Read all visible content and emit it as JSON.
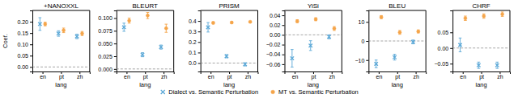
{
  "chart_data": [
    {
      "type": "dot",
      "title": "+NANOXXL",
      "xlabel": "lang",
      "ylabel": "Coef.",
      "categories": [
        "en",
        "pt",
        "zh"
      ],
      "ylim": [
        -0.02,
        0.25
      ],
      "yticks": [
        {
          "value": 0.0,
          "label": "0.00"
        },
        {
          "value": 0.05,
          "label": "0.05"
        },
        {
          "value": 0.1,
          "label": "0.10"
        },
        {
          "value": 0.15,
          "label": "0.15"
        },
        {
          "value": 0.2,
          "label": "0.20"
        }
      ],
      "hline": 0.0,
      "grid": false,
      "legend": "bottom",
      "series": [
        {
          "name": "Dialect vs. Semantic Perturbation",
          "color": "#5BA8D7",
          "marker": "x",
          "values": [
            0.19,
            0.148,
            0.135
          ],
          "errors": [
            0.028,
            0.012,
            0.01
          ]
        },
        {
          "name": "MT vs. Semantic Perturbation",
          "color": "#F5A54A",
          "marker": "circle",
          "values": [
            0.19,
            0.162,
            0.148
          ],
          "errors": [
            0.008,
            0.01,
            0.009
          ]
        }
      ]
    },
    {
      "type": "dot",
      "title": "BLEURT",
      "xlabel": "lang",
      "categories": [
        "en",
        "pt",
        "zh"
      ],
      "ylim": [
        -0.005,
        0.115
      ],
      "yticks": [
        {
          "value": 0.0,
          "label": "0.000"
        },
        {
          "value": 0.025,
          "label": "0.025"
        },
        {
          "value": 0.05,
          "label": "0.050"
        },
        {
          "value": 0.075,
          "label": "0.075"
        },
        {
          "value": 0.1,
          "label": "0.100"
        }
      ],
      "hline": 0.0,
      "grid": false,
      "series": [
        {
          "color": "#5BA8D7",
          "marker": "x",
          "values": [
            0.082,
            0.028,
            0.043
          ],
          "errors": [
            0.008,
            0.004,
            0.004
          ]
        },
        {
          "color": "#F5A54A",
          "marker": "circle",
          "values": [
            0.095,
            0.105,
            0.08
          ],
          "errors": [
            0.005,
            0.006,
            0.008
          ]
        }
      ]
    },
    {
      "type": "dot",
      "title": "PRISM",
      "xlabel": "lang",
      "categories": [
        "en",
        "pt",
        "zh"
      ],
      "ylim": [
        -0.08,
        0.5
      ],
      "yticks": [
        {
          "value": 0.0,
          "label": "0.0"
        },
        {
          "value": 0.1,
          "label": "0.1"
        },
        {
          "value": 0.2,
          "label": "0.2"
        },
        {
          "value": 0.3,
          "label": "0.3"
        },
        {
          "value": 0.4,
          "label": "0.4"
        }
      ],
      "hline": 0.0,
      "grid": false,
      "series": [
        {
          "color": "#5BA8D7",
          "marker": "x",
          "values": [
            0.34,
            0.065,
            -0.012
          ],
          "errors": [
            0.045,
            0.015,
            0.015
          ]
        },
        {
          "color": "#F5A54A",
          "marker": "circle",
          "values": [
            0.382,
            0.385,
            0.392
          ],
          "errors": [
            0.01,
            0.008,
            0.006
          ]
        }
      ]
    },
    {
      "type": "dot",
      "title": "YiSi",
      "xlabel": "lang",
      "categories": [
        "en",
        "pt",
        "zh"
      ],
      "ylim": [
        -0.075,
        0.05
      ],
      "yticks": [
        {
          "value": -0.06,
          "label": "−0.06"
        },
        {
          "value": -0.04,
          "label": "−0.04"
        },
        {
          "value": -0.02,
          "label": "−0.02"
        },
        {
          "value": 0.0,
          "label": "0.00"
        },
        {
          "value": 0.02,
          "label": "0.02"
        },
        {
          "value": 0.04,
          "label": "0.04"
        }
      ],
      "hline": 0.0,
      "grid": false,
      "series": [
        {
          "color": "#5BA8D7",
          "marker": "x",
          "values": [
            -0.048,
            -0.022,
            -0.004
          ],
          "errors": [
            0.018,
            0.01,
            0.004
          ]
        },
        {
          "color": "#F5A54A",
          "marker": "circle",
          "values": [
            0.028,
            0.032,
            0.013
          ],
          "errors": [
            0.003,
            0.003,
            0.004
          ]
        }
      ]
    },
    {
      "type": "dot",
      "title": "BLEU",
      "xlabel": "lang",
      "categories": [
        "en",
        "pt",
        "zh"
      ],
      "ylim": [
        -16,
        16
      ],
      "yticks": [
        {
          "value": -10,
          "label": "−10"
        },
        0,
        10
      ],
      "hline": 0.0,
      "grid": false,
      "series": [
        {
          "color": "#5BA8D7",
          "marker": "x",
          "values": [
            -12.0,
            -8.5,
            -0.5
          ],
          "errors": [
            2.0,
            1.5,
            1.0
          ]
        },
        {
          "color": "#F5A54A",
          "marker": "circle",
          "values": [
            12.5,
            4.5,
            5.0
          ],
          "errors": [
            0.8,
            1.0,
            0.8
          ]
        }
      ]
    },
    {
      "type": "dot",
      "title": "CHRF",
      "xlabel": "lang",
      "categories": [
        "en",
        "pt",
        "zh"
      ],
      "ylim": [
        -0.075,
        0.12
      ],
      "yticks": [
        {
          "value": -0.05,
          "label": "−0.05"
        },
        {
          "value": 0.0,
          "label": "0.00"
        },
        {
          "value": 0.05,
          "label": "0.05"
        }
      ],
      "hline": 0.0,
      "grid": false,
      "series": [
        {
          "color": "#5BA8D7",
          "marker": "x",
          "values": [
            0.01,
            -0.055,
            -0.055
          ],
          "errors": [
            0.022,
            0.01,
            0.01
          ]
        },
        {
          "color": "#F5A54A",
          "marker": "circle",
          "values": [
            0.095,
            0.102,
            0.108
          ],
          "errors": [
            0.007,
            0.007,
            0.007
          ]
        }
      ]
    }
  ]
}
